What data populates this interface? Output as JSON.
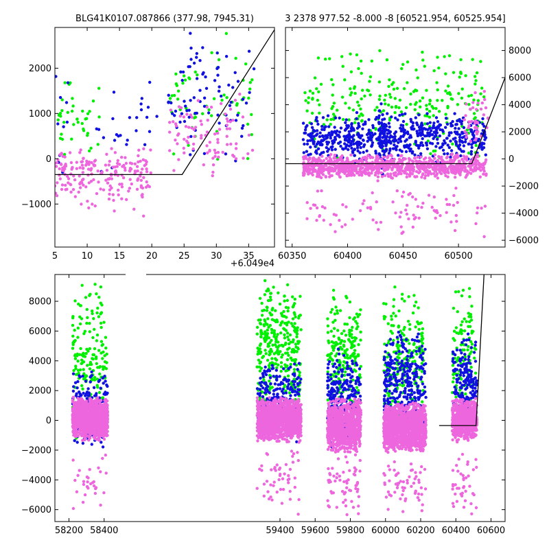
{
  "chart_data": [
    {
      "id": "top-left",
      "type": "scatter",
      "title": "BLG41K0107.087866 (377.98, 7945.31)",
      "xlim": [
        5,
        39
      ],
      "ylim": [
        -1950,
        2900
      ],
      "x_ticks": [
        5,
        10,
        15,
        20,
        25,
        30,
        35
      ],
      "y_ticks": [
        -1000,
        0,
        1000,
        2000
      ],
      "y_tick_labels": [
        "−1000",
        "0",
        "1000",
        "2000"
      ],
      "y_axis_side": "left",
      "x_offset_label": "+6.049e4",
      "grid": false,
      "series": [
        {
          "color": "#00ee00",
          "groups": [
            [
              5,
              12,
              -200,
              2000,
              40,
              11
            ],
            [
              22.5,
              36,
              -200,
              2900,
              60,
              12
            ]
          ]
        },
        {
          "color": "#1010e0",
          "groups": [
            [
              5,
              22,
              -400,
              2000,
              35,
              13
            ],
            [
              22.5,
              36,
              -200,
              2900,
              80,
              14
            ]
          ]
        },
        {
          "color": "#ee66dd",
          "groups": [
            [
              5,
              20,
              -900,
              300,
              180,
              15
            ],
            [
              8,
              19,
              -1700,
              0,
              25,
              16
            ],
            [
              22.5,
              36,
              -500,
              1600,
              90,
              17
            ]
          ]
        }
      ],
      "model_line": {
        "x": [
          5,
          24.7,
          39
        ],
        "y": [
          -350,
          -350,
          2850
        ]
      }
    },
    {
      "id": "top-right",
      "type": "scatter",
      "title": "3 2378 977.52 -8.000 -8 [60521.954, 60525.954]",
      "xlim": [
        60344,
        60542
      ],
      "ylim": [
        -6500,
        9700
      ],
      "x_ticks": [
        60350,
        60400,
        60450,
        60500
      ],
      "y_ticks": [
        -6000,
        -4000,
        -2000,
        0,
        2000,
        4000,
        6000,
        8000
      ],
      "y_tick_labels": [
        "−6000",
        "−4000",
        "−2000",
        "0",
        "2000",
        "4000",
        "6000",
        "8000"
      ],
      "y_axis_side": "right",
      "grid": false,
      "series": [
        {
          "color": "#00ee00",
          "groups": [
            [
              60360,
              60525,
              -500,
              8500,
              260,
              21
            ]
          ]
        },
        {
          "color": "#1010e0",
          "groups": [
            [
              60360,
              60525,
              -300,
              3500,
              600,
              22
            ],
            [
              60428,
              60435,
              -1500,
              4500,
              60,
              23
            ]
          ]
        },
        {
          "color": "#ee66dd",
          "groups": [
            [
              60360,
              60525,
              -1500,
              400,
              900,
              24
            ],
            [
              60360,
              60525,
              -6000,
              -1500,
              90,
              25
            ],
            [
              60505,
              60528,
              0,
              5500,
              40,
              26
            ]
          ]
        }
      ],
      "model_line": {
        "x": [
          60344,
          60512,
          60542
        ],
        "y": [
          -350,
          -350,
          6000
        ]
      }
    },
    {
      "id": "bottom",
      "type": "scatter",
      "title": "",
      "xlim": [
        58120,
        60680
      ],
      "ylim": [
        -6800,
        9800
      ],
      "x_ticks": [
        58200,
        58400,
        59400,
        59600,
        59800,
        60000,
        60200,
        60400,
        60600
      ],
      "y_ticks": [
        -6000,
        -4000,
        -2000,
        0,
        2000,
        4000,
        6000,
        8000
      ],
      "y_tick_labels": [
        "−6000",
        "−4000",
        "−2000",
        "0",
        "2000",
        "4000",
        "6000",
        "8000"
      ],
      "y_axis_side": "left",
      "grid": false,
      "series": [
        {
          "color": "#00ee00",
          "groups": [
            [
              58220,
              58420,
              -1500,
              9500,
              180,
              31
            ],
            [
              59270,
              59520,
              -600,
              9800,
              350,
              32
            ],
            [
              59670,
              59860,
              -600,
              9000,
              200,
              33
            ],
            [
              59990,
              60220,
              -1500,
              9200,
              220,
              34
            ],
            [
              60380,
              60520,
              -600,
              9500,
              120,
              35
            ]
          ]
        },
        {
          "color": "#1010e0",
          "groups": [
            [
              58220,
              58420,
              -2000,
              3500,
              220,
              41
            ],
            [
              59270,
              59520,
              -1500,
              4200,
              250,
              42
            ],
            [
              59670,
              59860,
              -2000,
              5000,
              250,
              43
            ],
            [
              59990,
              60230,
              -1000,
              6000,
              300,
              44
            ],
            [
              60380,
              60520,
              -1000,
              6000,
              180,
              45
            ]
          ]
        },
        {
          "color": "#ee66dd",
          "groups": [
            [
              58220,
              58420,
              -1400,
              1600,
              1200,
              51
            ],
            [
              59270,
              59520,
              -1500,
              1600,
              1400,
              52
            ],
            [
              59670,
              59860,
              -2200,
              1500,
              900,
              53
            ],
            [
              59990,
              60230,
              -2200,
              1200,
              1300,
              54
            ],
            [
              60380,
              60520,
              -1500,
              1500,
              600,
              55
            ],
            [
              58220,
              58420,
              -6500,
              -1500,
              30,
              56
            ],
            [
              59270,
              59520,
              -6500,
              -1500,
              50,
              57
            ],
            [
              59670,
              59860,
              -6500,
              -2000,
              60,
              58
            ],
            [
              59990,
              60230,
              -6500,
              -2000,
              60,
              59
            ],
            [
              60380,
              60520,
              -6500,
              -2000,
              40,
              60
            ]
          ]
        }
      ],
      "model_line": {
        "x": [
          60305,
          60515,
          60560
        ],
        "y": [
          -350,
          -350,
          9800
        ]
      }
    }
  ]
}
